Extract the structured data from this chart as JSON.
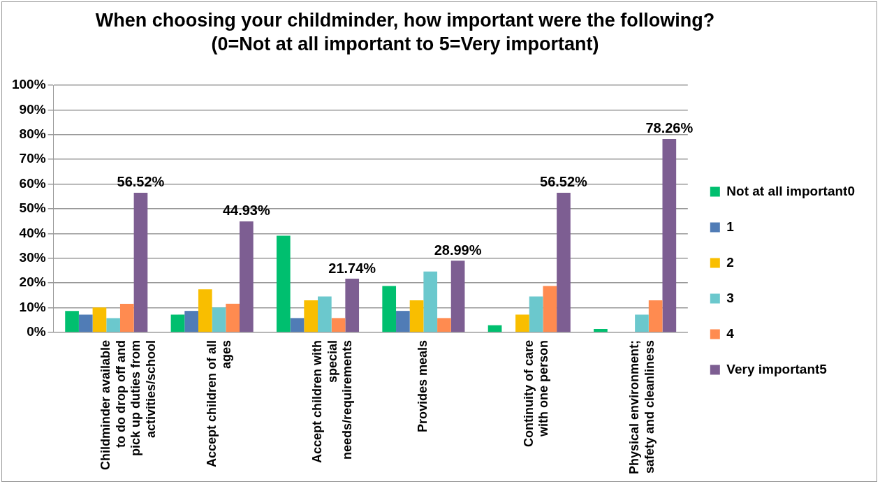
{
  "chart_data": {
    "type": "bar",
    "title": "When choosing your childminder, how important were the following? (0=Not at all important to 5=Very important)",
    "categories": [
      "Childminder available to do drop off and pick up duties from activities/school",
      "Accept children of all ages",
      "Accept children with special needs/requirements",
      "Provides meals",
      "Continuity of care with one person",
      "Physical environment; safety and cleanliness"
    ],
    "series": [
      {
        "name": "Not at all important0",
        "color": "#00bf6f",
        "values": [
          8.7,
          7.2,
          39.1,
          18.8,
          2.9,
          1.4
        ]
      },
      {
        "name": "1",
        "color": "#507cb6",
        "values": [
          7.2,
          8.7,
          5.8,
          8.7,
          0,
          0
        ]
      },
      {
        "name": "2",
        "color": "#f9be00",
        "values": [
          10.1,
          17.4,
          13.0,
          13.0,
          7.2,
          0
        ]
      },
      {
        "name": "3",
        "color": "#6bc8cd",
        "values": [
          5.8,
          10.1,
          14.5,
          24.6,
          14.5,
          7.2
        ]
      },
      {
        "name": "4",
        "color": "#ff8b50",
        "values": [
          11.6,
          11.6,
          5.8,
          5.8,
          18.8,
          13.0
        ]
      },
      {
        "name": "Very important5",
        "color": "#7d5e92",
        "values": [
          56.52,
          44.93,
          21.74,
          28.99,
          56.52,
          78.26
        ],
        "value_labels": [
          "56.52%",
          "44.93%",
          "21.74%",
          "28.99%",
          "56.52%",
          "78.26%"
        ]
      }
    ],
    "ylim": [
      0,
      100
    ],
    "yticks": [
      {
        "value": 0,
        "label": "0%"
      },
      {
        "value": 10,
        "label": "10%"
      },
      {
        "value": 20,
        "label": "20%"
      },
      {
        "value": 30,
        "label": "30%"
      },
      {
        "value": 40,
        "label": "40%"
      },
      {
        "value": 50,
        "label": "50%"
      },
      {
        "value": 60,
        "label": "60%"
      },
      {
        "value": 70,
        "label": "70%"
      },
      {
        "value": 80,
        "label": "80%"
      },
      {
        "value": 90,
        "label": "90%"
      },
      {
        "value": 100,
        "label": "100%"
      }
    ],
    "grid": "y",
    "legend": "right"
  }
}
